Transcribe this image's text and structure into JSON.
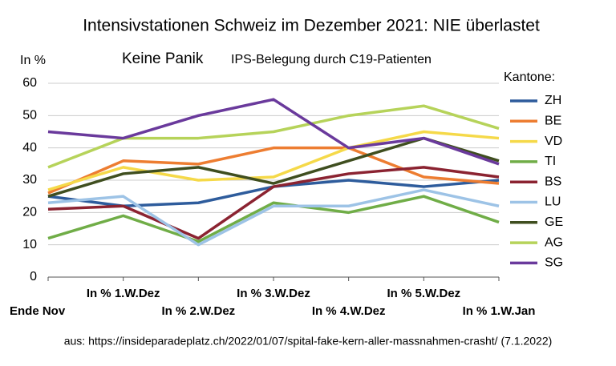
{
  "chart_data": {
    "type": "line",
    "title": "Intensivstationen Schweiz im Dezember 2021: NIE überlastet",
    "subtitle": "Keine Panik",
    "subtitle_detail": "IPS-Belegung durch C19-Patienten",
    "y_label": "In %",
    "legend_title": "Kantone:",
    "source": "aus: https://insideparadeplatz.ch/2022/01/07/spital-fake-kern-aller-massnahmen-crasht/ (7.1.2022)",
    "categories": [
      "Ende Nov",
      "In % 1.W.Dez",
      "In % 2.W.Dez",
      "In % 3.W.Dez",
      "In % 4.W.Dez",
      "In % 5.W.Dez",
      "In % 1.W.Jan"
    ],
    "ylim": [
      0,
      60
    ],
    "yticks": [
      0,
      10,
      20,
      30,
      40,
      50,
      60
    ],
    "grid": true,
    "series": [
      {
        "name": "ZH",
        "color": "#2e5c9c",
        "values": [
          25,
          22,
          23,
          28,
          30,
          28,
          30
        ]
      },
      {
        "name": "BE",
        "color": "#ed7d31",
        "values": [
          26,
          36,
          35,
          40,
          40,
          31,
          29
        ]
      },
      {
        "name": "VD",
        "color": "#f5d949",
        "values": [
          27,
          34,
          30,
          31,
          40,
          45,
          43
        ]
      },
      {
        "name": "TI",
        "color": "#70ad47",
        "values": [
          12,
          19,
          11,
          23,
          20,
          25,
          17
        ]
      },
      {
        "name": "BS",
        "color": "#8b2331",
        "values": [
          21,
          22,
          12,
          28,
          32,
          34,
          31
        ]
      },
      {
        "name": "LU",
        "color": "#9dc3e6",
        "values": [
          23,
          25,
          10,
          22,
          22,
          27,
          22
        ]
      },
      {
        "name": "GE",
        "color": "#3f4e1f",
        "values": [
          25,
          32,
          34,
          29,
          36,
          43,
          36
        ]
      },
      {
        "name": "AG",
        "color": "#b6d35a",
        "values": [
          34,
          43,
          43,
          45,
          50,
          53,
          46
        ]
      },
      {
        "name": "SG",
        "color": "#6a3a9c",
        "values": [
          45,
          43,
          50,
          55,
          40,
          43,
          35
        ]
      }
    ]
  }
}
